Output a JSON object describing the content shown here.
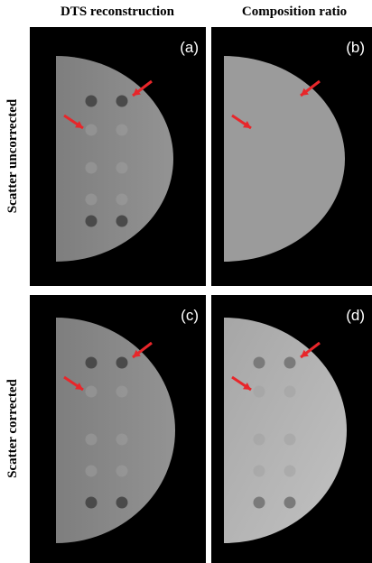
{
  "columns": [
    "DTS reconstruction",
    "Composition ratio"
  ],
  "rows": [
    "Scatter uncorrected",
    "Scatter corrected"
  ],
  "panels": [
    "(a)",
    "(b)",
    "(c)",
    "(d)"
  ]
}
